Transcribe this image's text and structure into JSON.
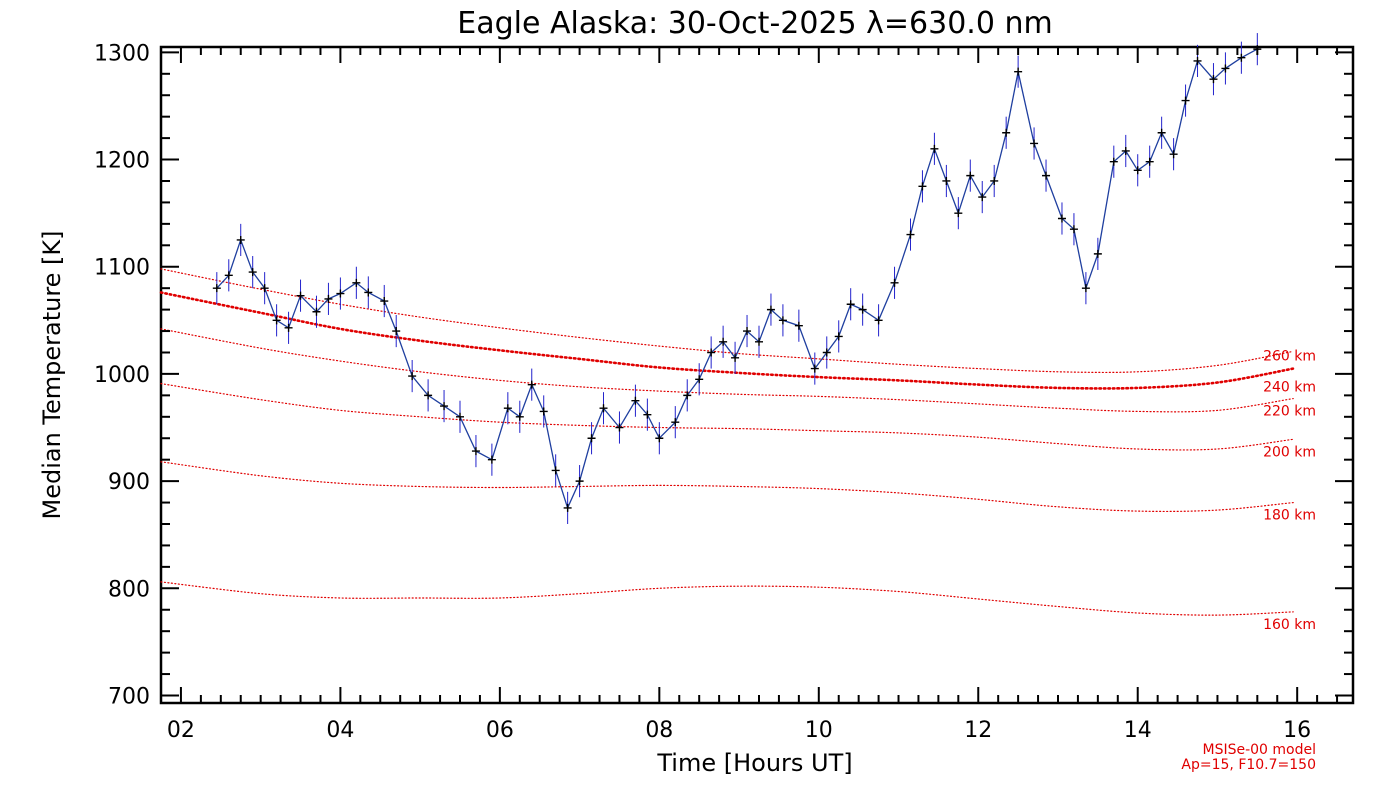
{
  "chart_data": {
    "type": "line",
    "title": "Eagle Alaska: 30-Oct-2025 λ=630.0 nm",
    "xlabel": "Time [Hours UT]",
    "ylabel": "Median Temperature [K]",
    "xlim": [
      1.75,
      16.7
    ],
    "ylim": [
      693,
      1305
    ],
    "xticks": [
      2,
      4,
      6,
      8,
      10,
      12,
      14,
      16
    ],
    "xtick_labels": [
      "02",
      "04",
      "06",
      "08",
      "10",
      "12",
      "14",
      "16"
    ],
    "yticks": [
      700,
      800,
      900,
      1000,
      1100,
      1200,
      1300
    ],
    "grid": false,
    "colors": {
      "measured": "#000000",
      "error_bars": "#2222cc",
      "model": "#e00000",
      "frame": "#000000"
    },
    "series": [
      {
        "x": [
          2.45,
          2.6,
          2.75,
          2.9,
          3.05,
          3.2,
          3.35,
          3.5,
          3.7,
          3.85,
          4.0,
          4.2,
          4.35,
          4.55,
          4.7,
          4.9,
          5.1,
          5.3,
          5.5,
          5.7,
          5.9,
          6.1,
          6.25,
          6.4,
          6.55,
          6.7,
          6.85,
          7.0,
          7.15,
          7.3,
          7.5,
          7.7,
          7.85,
          8.0,
          8.2,
          8.35,
          8.5,
          8.65,
          8.8,
          8.95,
          9.1,
          9.25,
          9.4,
          9.55,
          9.75,
          9.95,
          10.1,
          10.25,
          10.4,
          10.55,
          10.75,
          10.95,
          11.15,
          11.3,
          11.45,
          11.6,
          11.75,
          11.9,
          12.05,
          12.2,
          12.35,
          12.5,
          12.7,
          12.85,
          13.05,
          13.2,
          13.35,
          13.5,
          13.7,
          13.85,
          14.0,
          14.15,
          14.3,
          14.45,
          14.6,
          14.75,
          14.95,
          15.1,
          15.3,
          15.5
        ],
        "values": [
          1080,
          1092,
          1125,
          1095,
          1080,
          1050,
          1043,
          1073,
          1058,
          1070,
          1075,
          1085,
          1076,
          1068,
          1040,
          998,
          980,
          970,
          960,
          928,
          920,
          968,
          960,
          990,
          965,
          910,
          875,
          900,
          940,
          968,
          950,
          975,
          962,
          940,
          955,
          980,
          995,
          1020,
          1030,
          1015,
          1040,
          1030,
          1060,
          1050,
          1045,
          1005,
          1020,
          1035,
          1065,
          1060,
          1050,
          1085,
          1130,
          1175,
          1210,
          1180,
          1150,
          1185,
          1165,
          1180,
          1225,
          1282,
          1215,
          1185,
          1145,
          1135,
          1080,
          1112,
          1198,
          1208,
          1190,
          1198,
          1225,
          1205,
          1255,
          1292,
          1275,
          1285,
          1295,
          1303
        ],
        "error": 15
      },
      {
        "name": "160 km",
        "x": [
          1.75,
          3,
          4,
          5,
          6,
          7,
          8,
          9,
          10,
          11,
          12,
          13,
          14,
          15,
          15.95
        ],
        "values": [
          806,
          795,
          791,
          791,
          791,
          795,
          800,
          802,
          801,
          797,
          790,
          783,
          777,
          775,
          778
        ]
      },
      {
        "name": "180 km",
        "x": [
          1.75,
          3,
          4,
          5,
          6,
          7,
          8,
          9,
          10,
          11,
          12,
          13,
          14,
          15,
          15.95
        ],
        "values": [
          918,
          905,
          898,
          895,
          894,
          895,
          896,
          895,
          893,
          889,
          883,
          876,
          872,
          873,
          880
        ]
      },
      {
        "name": "200 km",
        "x": [
          1.75,
          3,
          4,
          5,
          6,
          7,
          8,
          9,
          10,
          11,
          12,
          13,
          14,
          15,
          15.95
        ],
        "values": [
          991,
          976,
          966,
          960,
          955,
          952,
          950,
          949,
          947,
          945,
          941,
          935,
          930,
          930,
          939
        ]
      },
      {
        "name": "220 km",
        "x": [
          1.75,
          3,
          4,
          5,
          6,
          7,
          8,
          9,
          10,
          11,
          12,
          13,
          14,
          15,
          15.95
        ],
        "values": [
          1042,
          1024,
          1012,
          1002,
          994,
          988,
          984,
          981,
          979,
          976,
          972,
          968,
          965,
          966,
          977
        ]
      },
      {
        "name": "240 km",
        "x": [
          1.75,
          3,
          4,
          5,
          6,
          7,
          8,
          9,
          10,
          11,
          12,
          13,
          14,
          15,
          15.95
        ],
        "values": [
          1076,
          1057,
          1042,
          1031,
          1022,
          1014,
          1006,
          1001,
          997,
          994,
          990,
          987,
          987,
          992,
          1005
        ]
      },
      {
        "name": "260 km",
        "x": [
          1.75,
          3,
          4,
          5,
          6,
          7,
          8,
          9,
          10,
          11,
          12,
          13,
          14,
          15,
          15.95
        ],
        "values": [
          1098,
          1079,
          1065,
          1053,
          1043,
          1034,
          1026,
          1019,
          1014,
          1009,
          1005,
          1002,
          1002,
          1008,
          1021
        ]
      }
    ],
    "annotations": [
      "MSISe-00 model",
      "Ap=15, F10.7=150"
    ]
  }
}
